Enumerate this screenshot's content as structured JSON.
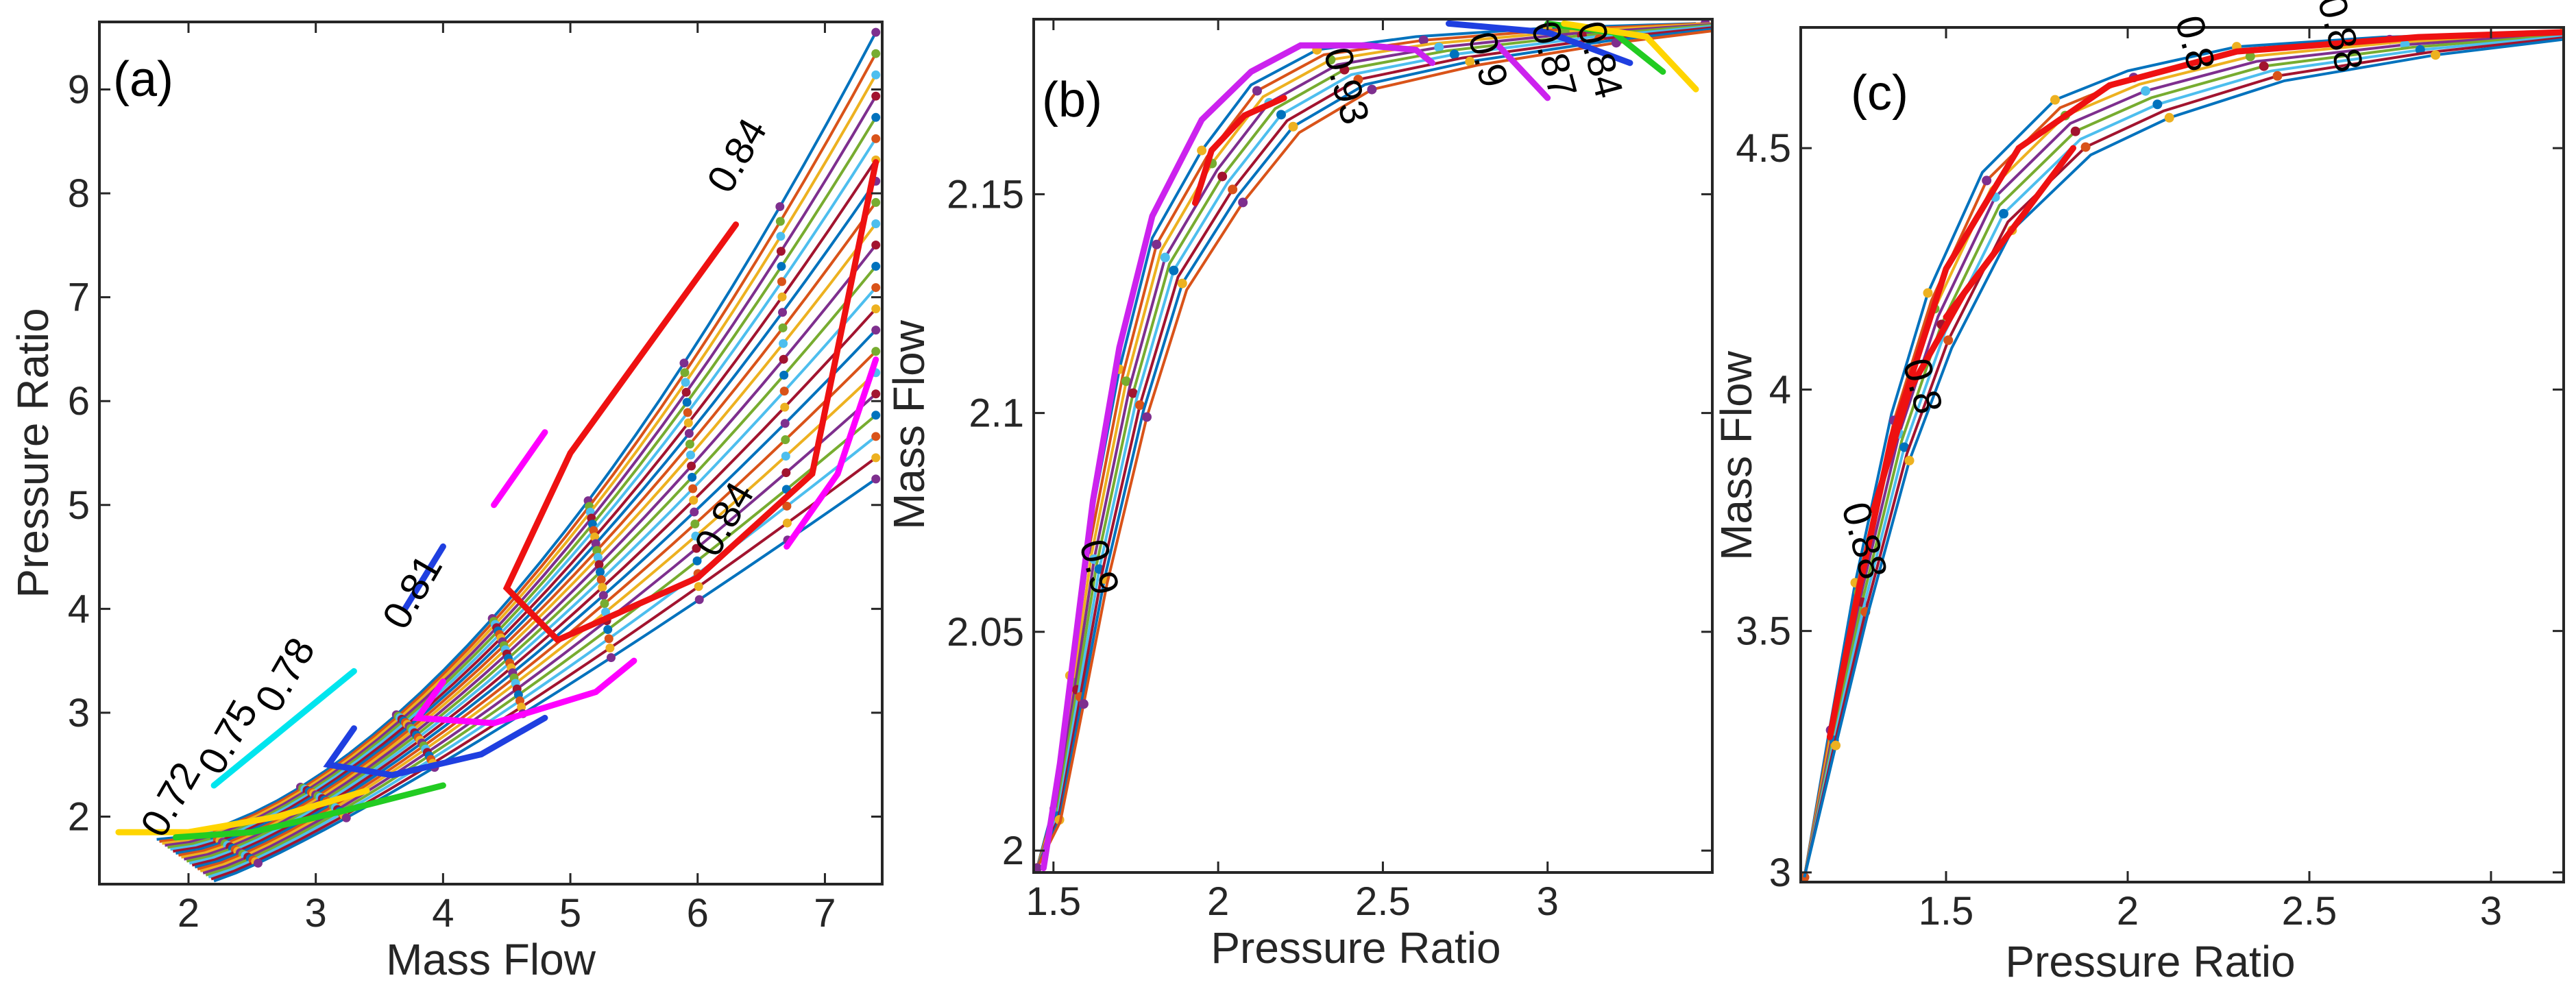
{
  "figure": {
    "panel_count": 3
  },
  "chart_data": [
    {
      "type": "line",
      "panel": "(a)",
      "xlabel": "Mass Flow",
      "ylabel": "Pressure Ratio",
      "xlim": [
        1.3,
        7.45
      ],
      "ylim": [
        1.35,
        9.65
      ],
      "xticks": [
        2,
        3,
        4,
        5,
        6,
        7
      ],
      "yticks": [
        2,
        3,
        4,
        5,
        6,
        7,
        8,
        9
      ],
      "speed_lines": {
        "count": 22,
        "x_start": 1.75,
        "y_start": 1.78,
        "x_end_first": 7.4,
        "y_end_first": 9.55,
        "x_end_last": 7.4,
        "y_end_last": 5.25,
        "x_start_last": 2.2,
        "y_start_last": 1.38
      },
      "efficiency_contours": [
        {
          "level": "0.72",
          "color": "#ffd500",
          "points": [
            [
              1.45,
              1.85
            ],
            [
              2.0,
              1.85
            ],
            [
              2.7,
              2.0
            ],
            [
              3.4,
              2.25
            ]
          ]
        },
        {
          "level": "0.75",
          "color": "#22cc22",
          "points": [
            [
              1.9,
              1.8
            ],
            [
              2.5,
              1.85
            ],
            [
              3.2,
              2.05
            ],
            [
              4.0,
              2.3
            ]
          ]
        },
        {
          "level": "0.78",
          "color": "#00e5ee",
          "points": [
            [
              2.2,
              2.3
            ],
            [
              2.8,
              2.9
            ],
            [
              3.3,
              3.4
            ]
          ]
        },
        {
          "level": "0.81",
          "color": "#1f3fe0",
          "points": [
            [
              3.3,
              2.85
            ],
            [
              3.1,
              2.5
            ],
            [
              3.6,
              2.4
            ],
            [
              4.3,
              2.6
            ],
            [
              4.8,
              2.95
            ]
          ]
        },
        {
          "level": "0.81",
          "color": "#1f3fe0",
          "points": [
            [
              3.7,
              4.0
            ],
            [
              4.0,
              4.6
            ]
          ]
        },
        {
          "level": "0.84",
          "color": "#ff00ff",
          "points": [
            [
              4.0,
              3.3
            ],
            [
              3.8,
              2.95
            ],
            [
              4.4,
              2.9
            ],
            [
              5.2,
              3.2
            ],
            [
              5.5,
              3.5
            ]
          ]
        },
        {
          "level": "0.84",
          "color": "#ff00ff",
          "points": [
            [
              4.4,
              5.0
            ],
            [
              4.8,
              5.7
            ]
          ]
        },
        {
          "level": "0.84",
          "color": "#ff00ff",
          "points": [
            [
              6.7,
              4.6
            ],
            [
              7.1,
              5.3
            ],
            [
              7.4,
              6.4
            ]
          ]
        },
        {
          "level": "0.84",
          "color": "#ee1111",
          "points": [
            [
              6.3,
              7.7
            ],
            [
              5.0,
              5.5
            ],
            [
              4.5,
              4.2
            ],
            [
              4.9,
              3.7
            ],
            [
              6.0,
              4.3
            ],
            [
              6.9,
              5.3
            ],
            [
              7.4,
              8.3
            ]
          ]
        }
      ],
      "contour_labels": [
        {
          "text": "0.72",
          "x": 1.95,
          "y": 2.1
        },
        {
          "text": "0.75",
          "x": 2.4,
          "y": 2.7
        },
        {
          "text": "0.78",
          "x": 2.85,
          "y": 3.3
        },
        {
          "text": "0.81",
          "x": 3.85,
          "y": 4.1
        },
        {
          "text": "0.84",
          "x": 6.3,
          "y": 4.8
        },
        {
          "text": "0.84",
          "x": 6.4,
          "y": 8.3
        }
      ]
    },
    {
      "type": "line",
      "panel": "(b)",
      "xlabel": "Pressure Ratio",
      "ylabel": "Mass Flow",
      "xlim": [
        1.44,
        3.5
      ],
      "ylim": [
        1.995,
        2.19
      ],
      "xticks": [
        1.5,
        2,
        2.5,
        3
      ],
      "yticks": [
        2,
        2.05,
        2.1,
        2.15
      ],
      "envelope": [
        [
          1.45,
          1.996
        ],
        [
          1.5,
          2.01
        ],
        [
          1.55,
          2.04
        ],
        [
          1.6,
          2.07
        ],
        [
          1.7,
          2.11
        ],
        [
          1.8,
          2.14
        ],
        [
          1.95,
          2.16
        ],
        [
          2.1,
          2.175
        ],
        [
          2.3,
          2.183
        ],
        [
          2.6,
          2.186
        ],
        [
          3.0,
          2.188
        ],
        [
          3.45,
          2.189
        ]
      ],
      "efficiency_contours": [
        {
          "level": "0.9",
          "color": "#cc22ee",
          "points": [
            [
              1.47,
              1.996
            ],
            [
              1.52,
              2.02
            ],
            [
              1.57,
              2.05
            ],
            [
              1.62,
              2.08
            ],
            [
              1.7,
              2.115
            ],
            [
              1.8,
              2.145
            ],
            [
              1.95,
              2.167
            ],
            [
              2.1,
              2.178
            ],
            [
              2.25,
              2.184
            ],
            [
              2.45,
              2.184
            ],
            [
              2.6,
              2.183
            ],
            [
              2.65,
              2.18
            ]
          ]
        },
        {
          "level": "0.93",
          "color": "#ee1111",
          "points": [
            [
              1.93,
              2.148
            ],
            [
              1.98,
              2.16
            ],
            [
              2.08,
              2.168
            ],
            [
              2.2,
              2.172
            ]
          ]
        },
        {
          "level": "0.9",
          "color": "#cc22ee",
          "points": [
            [
              2.85,
              2.184
            ],
            [
              2.9,
              2.18
            ],
            [
              3.0,
              2.172
            ]
          ]
        },
        {
          "level": "0.87",
          "color": "#1f3fe0",
          "points": [
            [
              2.7,
              2.189
            ],
            [
              3.0,
              2.187
            ],
            [
              3.25,
              2.18
            ]
          ]
        },
        {
          "level": "0.84",
          "color": "#22cc22",
          "points": [
            [
              3.0,
              2.189
            ],
            [
              3.2,
              2.187
            ],
            [
              3.35,
              2.178
            ]
          ]
        },
        {
          "level": "0.84",
          "color": "#ffd500",
          "points": [
            [
              3.05,
              2.189
            ],
            [
              3.3,
              2.186
            ],
            [
              3.45,
              2.174
            ]
          ]
        }
      ],
      "contour_labels": [
        {
          "text": "0.9",
          "x": 1.6,
          "y": 2.064
        },
        {
          "text": "0.93",
          "x": 2.35,
          "y": 2.174
        },
        {
          "text": "0.9",
          "x": 2.78,
          "y": 2.18
        },
        {
          "text": "0.87",
          "x": 2.98,
          "y": 2.18
        },
        {
          "text": "0.84",
          "x": 3.12,
          "y": 2.18
        }
      ]
    },
    {
      "type": "line",
      "panel": "(c)",
      "xlabel": "Pressure Ratio",
      "ylabel": "Mass Flow",
      "xlim": [
        1.1,
        3.2
      ],
      "ylim": [
        2.98,
        4.75
      ],
      "xticks": [
        1.5,
        2,
        2.5,
        3
      ],
      "yticks": [
        3,
        3.5,
        4,
        4.5
      ],
      "envelope": [
        [
          1.11,
          2.99
        ],
        [
          1.18,
          3.3
        ],
        [
          1.25,
          3.6
        ],
        [
          1.35,
          3.95
        ],
        [
          1.45,
          4.2
        ],
        [
          1.6,
          4.45
        ],
        [
          1.8,
          4.6
        ],
        [
          2.0,
          4.66
        ],
        [
          2.3,
          4.71
        ],
        [
          2.7,
          4.73
        ],
        [
          3.2,
          4.74
        ]
      ],
      "efficiency_contours": [
        {
          "level": "0.88",
          "color": "#ee1111",
          "points": [
            [
              1.18,
              3.28
            ],
            [
              1.25,
              3.55
            ],
            [
              1.35,
              3.9
            ],
            [
              1.5,
              4.25
            ],
            [
              1.7,
              4.5
            ],
            [
              1.95,
              4.63
            ],
            [
              2.3,
              4.7
            ],
            [
              2.8,
              4.73
            ],
            [
              3.2,
              4.74
            ]
          ]
        },
        {
          "level": "0.8",
          "color": "#ee1111",
          "points": [
            [
              1.3,
              3.75
            ],
            [
              1.4,
              4.0
            ],
            [
              1.55,
              4.2
            ],
            [
              1.65,
              4.3
            ]
          ]
        },
        {
          "level": "0.8",
          "color": "#ee1111",
          "points": [
            [
              1.5,
              4.15
            ],
            [
              1.65,
              4.3
            ],
            [
              1.85,
              4.5
            ]
          ]
        }
      ],
      "contour_labels": [
        {
          "text": "0.88",
          "x": 1.24,
          "y": 3.68
        },
        {
          "text": "0.8",
          "x": 1.4,
          "y": 4.0
        },
        {
          "text": "0.8",
          "x": 2.15,
          "y": 4.71
        },
        {
          "text": "0.88",
          "x": 2.55,
          "y": 4.73
        }
      ]
    }
  ],
  "palette": [
    "#0072bd",
    "#d95319",
    "#edb120",
    "#7e2f8e",
    "#77ac30",
    "#4dbeee",
    "#a2142f"
  ]
}
